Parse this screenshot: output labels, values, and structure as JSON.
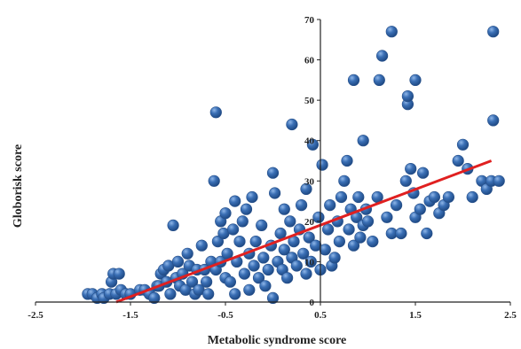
{
  "chart_data": {
    "type": "scatter",
    "xlabel": "Metabolic syndrome score",
    "ylabel": "Globorisk score",
    "xlim": [
      -2.5,
      2.5
    ],
    "ylim": [
      0,
      70
    ],
    "x_ticks": [
      "-2.5",
      "-1.5",
      "-0.5",
      "0.5",
      "1.5",
      "2.5"
    ],
    "y_ticks": [
      "0",
      "10",
      "20",
      "30",
      "40",
      "50",
      "60",
      "70"
    ],
    "grid": false,
    "legend": "none",
    "colors": {
      "points": "#3a6fb5",
      "point_edge": "#27508a",
      "trend": "#e02020",
      "axis": "#222222"
    },
    "trendline": {
      "x": [
        -1.65,
        2.3
      ],
      "y": [
        0,
        35
      ]
    },
    "points": [
      [
        -1.95,
        2
      ],
      [
        -1.9,
        2
      ],
      [
        -1.85,
        1
      ],
      [
        -1.8,
        2
      ],
      [
        -1.78,
        1
      ],
      [
        -1.72,
        2
      ],
      [
        -1.7,
        5
      ],
      [
        -1.68,
        7
      ],
      [
        -1.65,
        2
      ],
      [
        -1.62,
        7
      ],
      [
        -1.6,
        3
      ],
      [
        -1.55,
        2
      ],
      [
        -1.5,
        2
      ],
      [
        -1.4,
        3
      ],
      [
        -1.35,
        3
      ],
      [
        -1.3,
        2
      ],
      [
        -1.25,
        1
      ],
      [
        -1.22,
        4
      ],
      [
        -1.2,
        4
      ],
      [
        -1.18,
        7
      ],
      [
        -1.15,
        8
      ],
      [
        -1.12,
        5
      ],
      [
        -1.1,
        9
      ],
      [
        -1.08,
        2
      ],
      [
        -1.05,
        19
      ],
      [
        -1.02,
        6
      ],
      [
        -1.0,
        10
      ],
      [
        -0.98,
        4
      ],
      [
        -0.95,
        7
      ],
      [
        -0.92,
        3
      ],
      [
        -0.9,
        12
      ],
      [
        -0.88,
        9
      ],
      [
        -0.85,
        5
      ],
      [
        -0.82,
        2
      ],
      [
        -0.8,
        8
      ],
      [
        -0.78,
        3
      ],
      [
        -0.75,
        14
      ],
      [
        -0.72,
        8
      ],
      [
        -0.7,
        5
      ],
      [
        -0.68,
        2
      ],
      [
        -0.65,
        10
      ],
      [
        -0.62,
        30
      ],
      [
        -0.6,
        47
      ],
      [
        -0.6,
        8
      ],
      [
        -0.58,
        15
      ],
      [
        -0.55,
        20
      ],
      [
        -0.55,
        10
      ],
      [
        -0.52,
        17
      ],
      [
        -0.5,
        22
      ],
      [
        -0.5,
        6
      ],
      [
        -0.48,
        12
      ],
      [
        -0.45,
        5
      ],
      [
        -0.42,
        18
      ],
      [
        -0.4,
        2
      ],
      [
        -0.4,
        25
      ],
      [
        -0.38,
        10
      ],
      [
        -0.35,
        15
      ],
      [
        -0.32,
        20
      ],
      [
        -0.3,
        7
      ],
      [
        -0.28,
        23
      ],
      [
        -0.25,
        3
      ],
      [
        -0.25,
        12
      ],
      [
        -0.22,
        26
      ],
      [
        -0.2,
        9
      ],
      [
        -0.18,
        15
      ],
      [
        -0.15,
        6
      ],
      [
        -0.12,
        19
      ],
      [
        -0.1,
        11
      ],
      [
        -0.08,
        4
      ],
      [
        -0.05,
        8
      ],
      [
        -0.02,
        14
      ],
      [
        0.0,
        32
      ],
      [
        0.0,
        1
      ],
      [
        0.02,
        27
      ],
      [
        0.05,
        10
      ],
      [
        0.08,
        17
      ],
      [
        0.1,
        8
      ],
      [
        0.12,
        13
      ],
      [
        0.12,
        23
      ],
      [
        0.15,
        6
      ],
      [
        0.18,
        20
      ],
      [
        0.2,
        44
      ],
      [
        0.2,
        11
      ],
      [
        0.22,
        15
      ],
      [
        0.25,
        9
      ],
      [
        0.28,
        18
      ],
      [
        0.3,
        24
      ],
      [
        0.32,
        12
      ],
      [
        0.35,
        7
      ],
      [
        0.35,
        28
      ],
      [
        0.38,
        16
      ],
      [
        0.4,
        10
      ],
      [
        0.42,
        39
      ],
      [
        0.45,
        14
      ],
      [
        0.48,
        21
      ],
      [
        0.5,
        8
      ],
      [
        0.52,
        34
      ],
      [
        0.55,
        13
      ],
      [
        0.58,
        18
      ],
      [
        0.6,
        24
      ],
      [
        0.62,
        9
      ],
      [
        0.65,
        11
      ],
      [
        0.68,
        20
      ],
      [
        0.7,
        15
      ],
      [
        0.72,
        26
      ],
      [
        0.75,
        30
      ],
      [
        0.78,
        35
      ],
      [
        0.8,
        18
      ],
      [
        0.82,
        23
      ],
      [
        0.85,
        55
      ],
      [
        0.85,
        14
      ],
      [
        0.88,
        21
      ],
      [
        0.9,
        26
      ],
      [
        0.92,
        16
      ],
      [
        0.95,
        40
      ],
      [
        0.95,
        19
      ],
      [
        0.98,
        23
      ],
      [
        1.0,
        20
      ],
      [
        1.05,
        15
      ],
      [
        1.1,
        26
      ],
      [
        1.12,
        55
      ],
      [
        1.15,
        61
      ],
      [
        1.2,
        21
      ],
      [
        1.25,
        67
      ],
      [
        1.25,
        17
      ],
      [
        1.3,
        24
      ],
      [
        1.35,
        17
      ],
      [
        1.4,
        30
      ],
      [
        1.42,
        49
      ],
      [
        1.42,
        51
      ],
      [
        1.45,
        33
      ],
      [
        1.48,
        27
      ],
      [
        1.5,
        55
      ],
      [
        1.5,
        21
      ],
      [
        1.55,
        23
      ],
      [
        1.58,
        32
      ],
      [
        1.62,
        17
      ],
      [
        1.65,
        25
      ],
      [
        1.7,
        26
      ],
      [
        1.75,
        22
      ],
      [
        1.8,
        24
      ],
      [
        1.85,
        26
      ],
      [
        1.95,
        35
      ],
      [
        2.0,
        39
      ],
      [
        2.05,
        33
      ],
      [
        2.1,
        26
      ],
      [
        2.2,
        30
      ],
      [
        2.25,
        28
      ],
      [
        2.3,
        30
      ],
      [
        2.32,
        67
      ],
      [
        2.32,
        45
      ],
      [
        2.38,
        30
      ]
    ]
  }
}
